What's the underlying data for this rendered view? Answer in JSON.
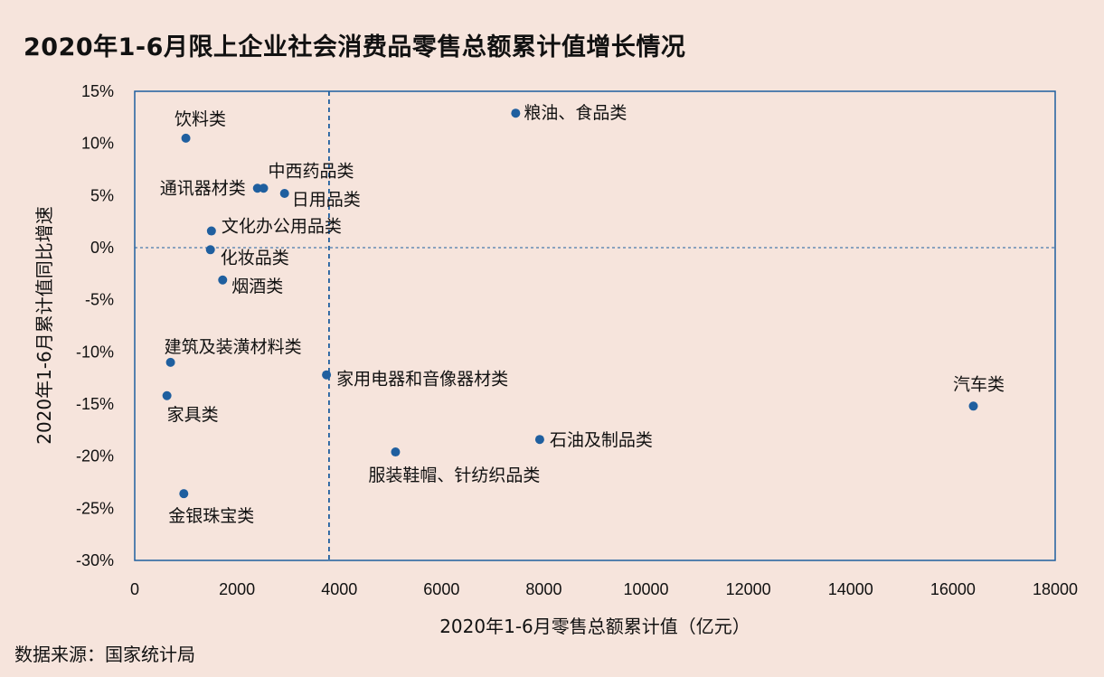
{
  "title": "2020年1-6月限上企业社会消费品零售总额累计值增长情况",
  "source": "数据来源：国家统计局",
  "colors": {
    "background": "#f6e4dc",
    "point": "#1f5f9f",
    "frame": "#1f5f9f",
    "reference_line": "#1f5f9f"
  },
  "chart_data": {
    "type": "scatter",
    "xlabel": "2020年1-6月零售总额累计值（亿元）",
    "ylabel": "2020年1-6月累计值同比增速",
    "xlim": [
      0,
      18000
    ],
    "ylim": [
      -30,
      15
    ],
    "x_ticks": [
      "0",
      "2000",
      "4000",
      "6000",
      "8000",
      "10000",
      "12000",
      "14000",
      "16000",
      "18000"
    ],
    "y_ticks": [
      "15%",
      "10%",
      "5%",
      "0%",
      "-5%",
      "-10%",
      "-15%",
      "-20%",
      "-25%",
      "-30%"
    ],
    "reference_lines": {
      "x": 3800,
      "y": 0
    },
    "points": [
      {
        "label": "粮油、食品类",
        "x": 7450,
        "y": 12.9
      },
      {
        "label": "饮料类",
        "x": 1000,
        "y": 10.5
      },
      {
        "label": "通讯器材类",
        "x": 2400,
        "y": 5.7
      },
      {
        "label": "中西药品类",
        "x": 2520,
        "y": 5.7
      },
      {
        "label": "日用品类",
        "x": 2930,
        "y": 5.2
      },
      {
        "label": "文化办公用品类",
        "x": 1500,
        "y": 1.6
      },
      {
        "label": "化妆品类",
        "x": 1480,
        "y": -0.2
      },
      {
        "label": "烟酒类",
        "x": 1720,
        "y": -3.1
      },
      {
        "label": "建筑及装潢材料类",
        "x": 700,
        "y": -11.0
      },
      {
        "label": "家用电器和音像器材类",
        "x": 3750,
        "y": -12.2
      },
      {
        "label": "家具类",
        "x": 630,
        "y": -14.2
      },
      {
        "label": "汽车类",
        "x": 16400,
        "y": -15.2
      },
      {
        "label": "石油及制品类",
        "x": 7920,
        "y": -18.4
      },
      {
        "label": "服装鞋帽、针纺织品类",
        "x": 5100,
        "y": -19.6
      },
      {
        "label": "金银珠宝类",
        "x": 960,
        "y": -23.6
      }
    ]
  }
}
